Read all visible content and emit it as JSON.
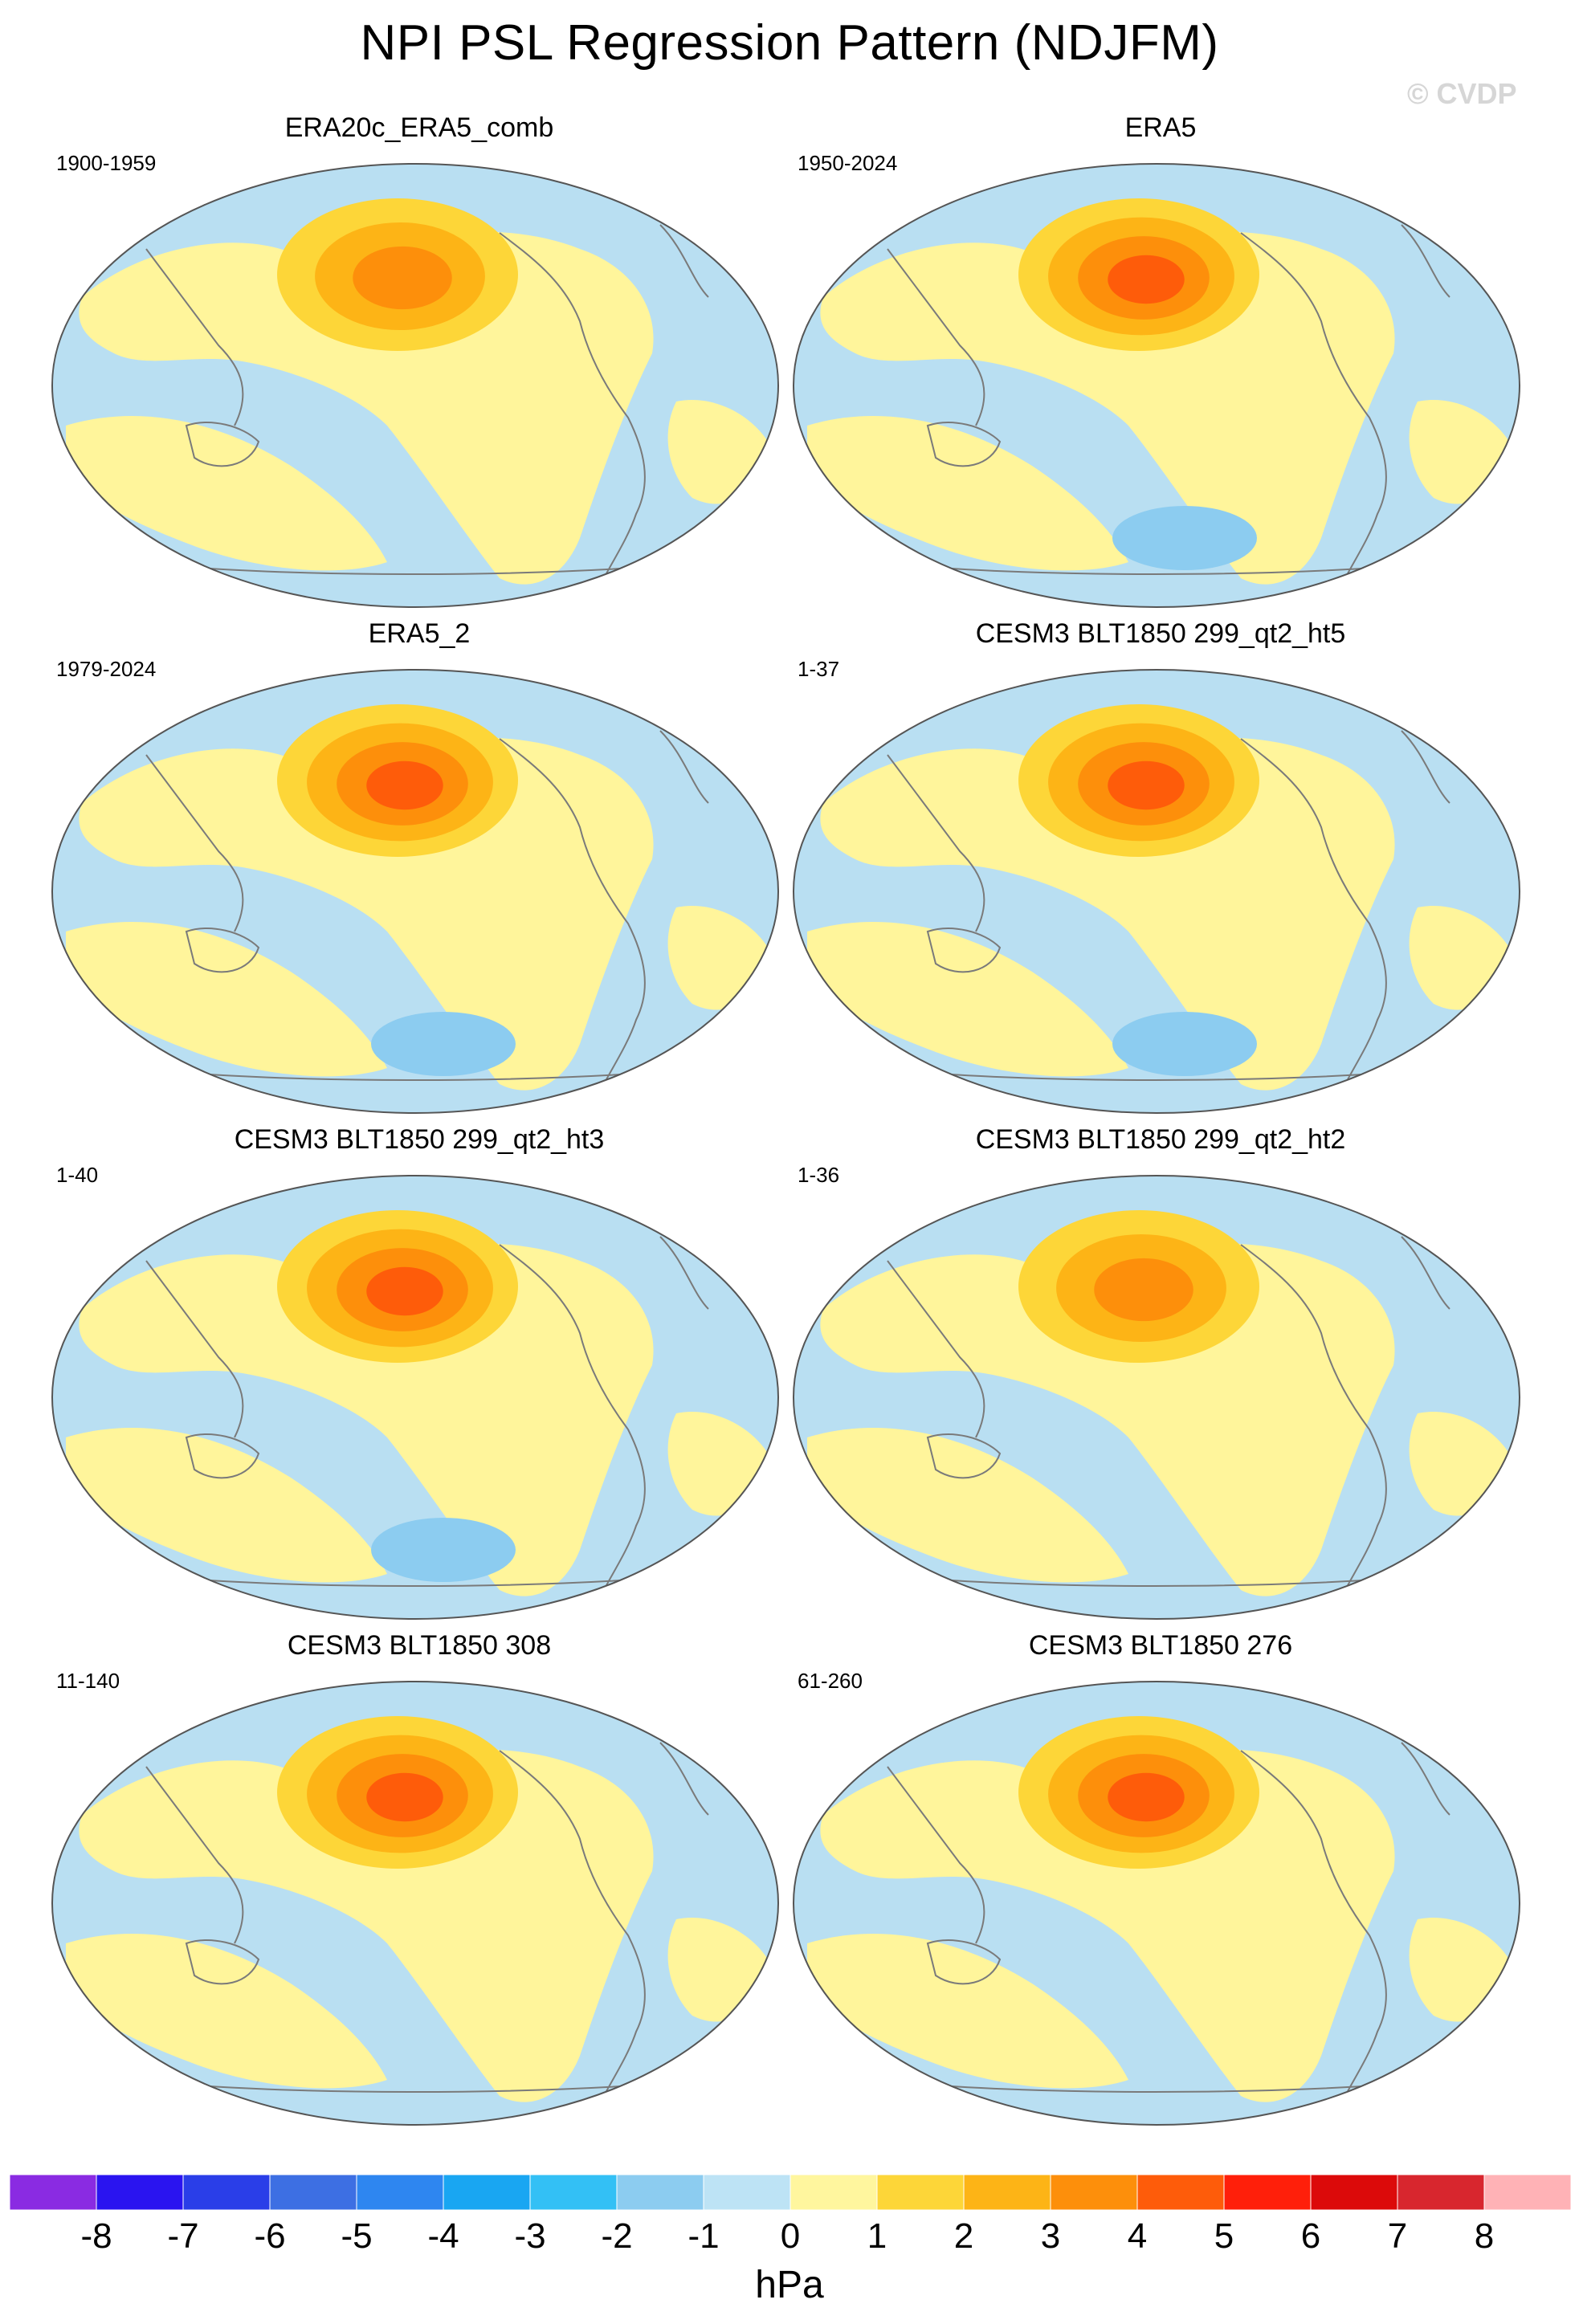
{
  "title": "NPI PSL Regression Pattern (NDJFM)",
  "watermark": "© CVDP",
  "colors": {
    "ocean_neg": "#b9dff2",
    "ocean_pos": "#fff59b",
    "coast": "#7a7a7a",
    "frame": "#555555"
  },
  "panels": [
    {
      "title": "ERA20c_ERA5_comb",
      "years": "1900-1959",
      "center_value_hpa": 3.5,
      "southern_low": false
    },
    {
      "title": "ERA5",
      "years": "1950-2024",
      "center_value_hpa": 4.5,
      "southern_low": true
    },
    {
      "title": "ERA5_2",
      "years": "1979-2024",
      "center_value_hpa": 4.5,
      "southern_low": true
    },
    {
      "title": "CESM3 BLT1850 299_qt2_ht5",
      "years": "1-37",
      "center_value_hpa": 4.5,
      "southern_low": true
    },
    {
      "title": "CESM3 BLT1850 299_qt2_ht3",
      "years": "1-40",
      "center_value_hpa": 4.5,
      "southern_low": true
    },
    {
      "title": "CESM3 BLT1850 299_qt2_ht2",
      "years": "1-36",
      "center_value_hpa": 3.5,
      "southern_low": false
    },
    {
      "title": "CESM3 BLT1850 308",
      "years": "11-140",
      "center_value_hpa": 4.5,
      "southern_low": false
    },
    {
      "title": "CESM3 BLT1850 276",
      "years": "61-260",
      "center_value_hpa": 4.5,
      "southern_low": false
    }
  ],
  "colorbar": {
    "unit": "hPa",
    "labels": [
      "-8",
      "-7",
      "-6",
      "-5",
      "-4",
      "-3",
      "-2",
      "-1",
      "0",
      "1",
      "2",
      "3",
      "4",
      "5",
      "6",
      "7",
      "8"
    ],
    "colors": [
      "#8a2be2",
      "#2a14f0",
      "#2a3ee8",
      "#3d6fe3",
      "#2e86f0",
      "#19a6f2",
      "#33c0f5",
      "#8cccf0",
      "#bde3f5",
      "#fff69e",
      "#fdd638",
      "#fdb416",
      "#fd8f0b",
      "#fe5c0a",
      "#ff1f0a",
      "#dc0a0a",
      "#d8262e",
      "#ffb2b6"
    ]
  }
}
